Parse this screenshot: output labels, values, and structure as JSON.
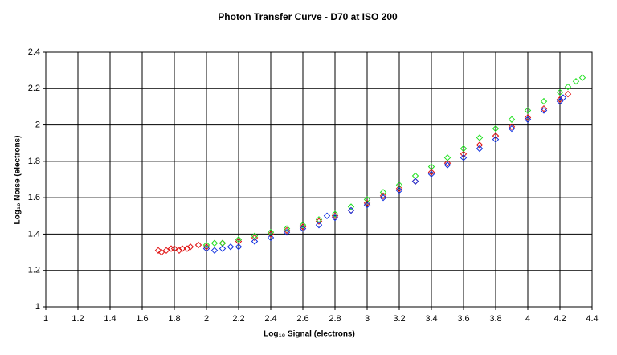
{
  "chart_data": {
    "type": "scatter",
    "title": "Photon Transfer Curve - D70 at ISO 200",
    "x_label": "Log₁₀ Signal (electrons)",
    "y_label": "Log₁₀ Noise (electrons)",
    "xlim": [
      1,
      4.4
    ],
    "ylim": [
      1,
      2.4
    ],
    "xticks": [
      1,
      1.2,
      1.4,
      1.6,
      1.8,
      2,
      2.2,
      2.4,
      2.6,
      2.8,
      3,
      3.2,
      3.4,
      3.6,
      3.8,
      4,
      4.2,
      4.4
    ],
    "yticks": [
      1,
      1.2,
      1.4,
      1.6,
      1.8,
      2,
      2.2,
      2.4
    ],
    "grid": true,
    "series": [
      {
        "color": "#e01010",
        "x": [
          1.7,
          1.72,
          1.75,
          1.78,
          1.8,
          1.83,
          1.85,
          1.88,
          1.9,
          1.95,
          2.0,
          2.1,
          2.2,
          2.3,
          2.4,
          2.5,
          2.6,
          2.7,
          2.8,
          2.9,
          3.0,
          3.1,
          3.2,
          3.3,
          3.4,
          3.5,
          3.6,
          3.7,
          3.8,
          3.9,
          4.0,
          4.1,
          4.2,
          4.25
        ],
        "values": [
          1.31,
          1.3,
          1.31,
          1.32,
          1.32,
          1.31,
          1.32,
          1.32,
          1.33,
          1.34,
          1.33,
          1.35,
          1.36,
          1.38,
          1.4,
          1.42,
          1.44,
          1.47,
          1.5,
          1.53,
          1.57,
          1.61,
          1.65,
          1.69,
          1.74,
          1.79,
          1.84,
          1.89,
          1.94,
          1.99,
          2.04,
          2.09,
          2.14,
          2.17
        ]
      },
      {
        "color": "#20e020",
        "x": [
          2.0,
          2.05,
          2.1,
          2.2,
          2.3,
          2.4,
          2.5,
          2.6,
          2.7,
          2.8,
          2.9,
          3.0,
          3.1,
          3.2,
          3.3,
          3.4,
          3.5,
          3.6,
          3.7,
          3.8,
          3.9,
          4.0,
          4.1,
          4.2,
          4.25,
          4.3,
          4.34
        ],
        "values": [
          1.34,
          1.35,
          1.35,
          1.37,
          1.39,
          1.41,
          1.43,
          1.45,
          1.48,
          1.51,
          1.55,
          1.59,
          1.63,
          1.67,
          1.72,
          1.77,
          1.82,
          1.87,
          1.93,
          1.98,
          2.03,
          2.08,
          2.13,
          2.18,
          2.21,
          2.24,
          2.26
        ]
      },
      {
        "color": "#1030e0",
        "x": [
          2.0,
          2.05,
          2.1,
          2.15,
          2.2,
          2.3,
          2.4,
          2.5,
          2.6,
          2.7,
          2.75,
          2.8,
          2.9,
          3.0,
          3.1,
          3.2,
          3.3,
          3.4,
          3.5,
          3.6,
          3.7,
          3.8,
          3.9,
          4.0,
          4.1,
          4.2,
          4.22
        ],
        "values": [
          1.32,
          1.31,
          1.32,
          1.33,
          1.33,
          1.36,
          1.38,
          1.41,
          1.43,
          1.45,
          1.5,
          1.49,
          1.53,
          1.56,
          1.6,
          1.64,
          1.69,
          1.73,
          1.78,
          1.82,
          1.87,
          1.92,
          1.98,
          2.03,
          2.08,
          2.13,
          2.15
        ]
      }
    ]
  }
}
